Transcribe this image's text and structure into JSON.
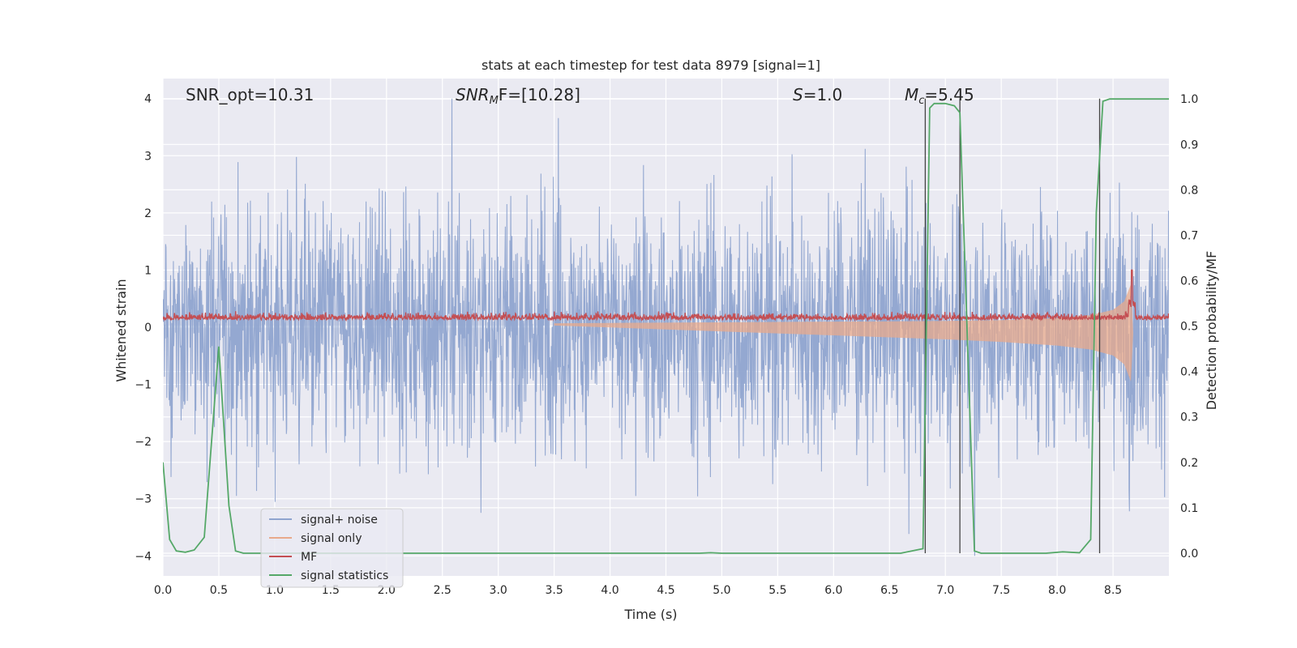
{
  "chart_data": {
    "type": "line",
    "title": "stats at each timestep for test data 8979 [signal=1]",
    "xlabel": "Time (s)",
    "ylabel_left": "Whitened strain",
    "ylabel_right": "Detection probability/MF",
    "xlim": [
      0.0,
      9.0
    ],
    "ylim_left": [
      -4.35,
      4.35
    ],
    "ylim_right": [
      -0.05,
      1.045
    ],
    "x_ticks": [
      0.0,
      0.5,
      1.0,
      1.5,
      2.0,
      2.5,
      3.0,
      3.5,
      4.0,
      4.5,
      5.0,
      5.5,
      6.0,
      6.5,
      7.0,
      7.5,
      8.0,
      8.5
    ],
    "x_tick_labels": [
      "0.0",
      "0.5",
      "1.0",
      "1.5",
      "2.0",
      "2.5",
      "3.0",
      "3.5",
      "4.0",
      "4.5",
      "5.0",
      "5.5",
      "6.0",
      "6.5",
      "7.0",
      "7.5",
      "8.0",
      "8.5"
    ],
    "y_left_ticks": [
      -4,
      -3,
      -2,
      -1,
      0,
      1,
      2,
      3,
      4
    ],
    "y_left_tick_labels": [
      "−4",
      "−3",
      "−2",
      "−1",
      "0",
      "1",
      "2",
      "3",
      "4"
    ],
    "y_right_ticks": [
      0.0,
      0.1,
      0.2,
      0.3,
      0.4,
      0.5,
      0.6,
      0.7,
      0.8,
      0.9,
      1.0
    ],
    "y_right_tick_labels": [
      "0.0",
      "0.1",
      "0.2",
      "0.3",
      "0.4",
      "0.5",
      "0.6",
      "0.7",
      "0.8",
      "0.9",
      "1.0"
    ],
    "grid": true,
    "legend_position": "bottom-left",
    "annotations": {
      "snr_opt": "SNR_opt=10.31",
      "snr_mf_base": "SNR",
      "snr_mf_sub": "M",
      "snr_mf_rest": "F=[10.28]",
      "s_var": "S",
      "s_rest": "=1.0",
      "mc_var": "M",
      "mc_sub": "c",
      "mc_rest": "=5.45"
    },
    "series": [
      {
        "name": "signal+ noise",
        "color": "#8fa4cf",
        "description": "whitened strain noise, roughly Gaussian, spikes between about -3.9 and 4.0",
        "amplitude_envelope": [
          -4.0,
          4.0
        ]
      },
      {
        "name": "signal only",
        "color": "#e8a98b",
        "envelope_x": [
          3.5,
          4.0,
          5.0,
          6.0,
          6.5,
          7.0,
          7.5,
          8.0,
          8.3,
          8.5,
          8.6,
          8.66,
          8.68
        ],
        "envelope_half_width": [
          0.02,
          0.04,
          0.08,
          0.12,
          0.14,
          0.16,
          0.19,
          0.24,
          0.3,
          0.4,
          0.55,
          0.85,
          0.0
        ]
      },
      {
        "name": "MF",
        "color": "#c44e52",
        "description": "matched filter output near 0.1 to 0.3 with a peak of 1.0 near t=8.67",
        "peak_x": 8.67,
        "peak_y": 1.0
      },
      {
        "name": "signal statistics",
        "color": "#55a868",
        "x": [
          0.0,
          0.06,
          0.12,
          0.2,
          0.28,
          0.37,
          0.5,
          0.59,
          0.65,
          0.72,
          1.0,
          2.0,
          3.0,
          4.0,
          4.8,
          4.9,
          5.0,
          6.0,
          6.6,
          6.8,
          6.86,
          6.9,
          7.0,
          7.08,
          7.13,
          7.2,
          7.26,
          7.32,
          7.5,
          7.9,
          8.05,
          8.2,
          8.3,
          8.35,
          8.41,
          8.47,
          9.0
        ],
        "y": [
          0.2,
          0.03,
          0.005,
          0.002,
          0.007,
          0.035,
          0.455,
          0.105,
          0.005,
          0.0,
          0.0,
          0.0,
          0.0,
          0.0,
          0.0,
          0.001,
          0.0,
          0.0,
          0.0,
          0.01,
          0.98,
          0.99,
          0.99,
          0.985,
          0.97,
          0.45,
          0.005,
          0.0,
          0.0,
          0.0,
          0.003,
          0.001,
          0.03,
          0.75,
          0.995,
          1.0,
          1.0
        ]
      }
    ],
    "vertical_lines_x": [
      6.82,
      7.13,
      8.38
    ]
  }
}
